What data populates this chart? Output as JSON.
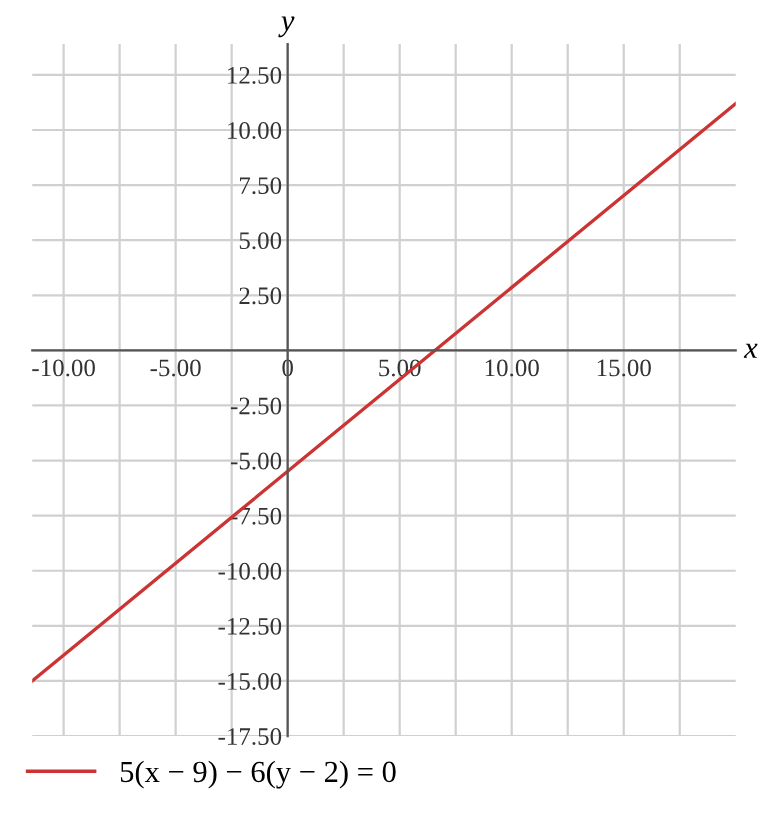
{
  "chart_data": {
    "type": "line",
    "xlabel": "x",
    "ylabel": "y",
    "x": [
      -11.4,
      20
    ],
    "series": [
      {
        "name": "5(x − 9) − 6(y − 2) = 0",
        "color": "#cc3333",
        "values": [
          -15.0,
          11.2
        ]
      }
    ],
    "xlim": [
      -11.4,
      20
    ],
    "ylim": [
      -17.5,
      13.9
    ],
    "xticks": [
      {
        "value": -10,
        "label": "-10.00"
      },
      {
        "value": -7.5,
        "label": null
      },
      {
        "value": -5,
        "label": "-5.00"
      },
      {
        "value": -2.5,
        "label": null
      },
      0,
      {
        "value": 2.5,
        "label": null
      },
      {
        "value": 5,
        "label": "5.00"
      },
      {
        "value": 7.5,
        "label": null
      },
      {
        "value": 10,
        "label": "10.00"
      },
      {
        "value": 12.5,
        "label": null
      },
      {
        "value": 15,
        "label": "15.00"
      },
      {
        "value": 17.5,
        "label": null
      }
    ],
    "yticks": [
      {
        "value": -17.5,
        "label": "-17.50"
      },
      {
        "value": -15,
        "label": "-15.00"
      },
      {
        "value": -12.5,
        "label": "-12.50"
      },
      {
        "value": -10,
        "label": "-10.00"
      },
      {
        "value": -7.5,
        "label": "-7.50"
      },
      {
        "value": -5,
        "label": "-5.00"
      },
      {
        "value": -2.5,
        "label": "-2.50"
      },
      {
        "value": 0,
        "label": null
      },
      {
        "value": 2.5,
        "label": "2.50"
      },
      {
        "value": 5,
        "label": "5.00"
      },
      {
        "value": 7.5,
        "label": "7.50"
      },
      {
        "value": 10,
        "label": "10.00"
      },
      {
        "value": 12.5,
        "label": "12.50"
      }
    ],
    "grid": true,
    "legend": "bottom",
    "marker": "none",
    "line_style": "solid"
  }
}
